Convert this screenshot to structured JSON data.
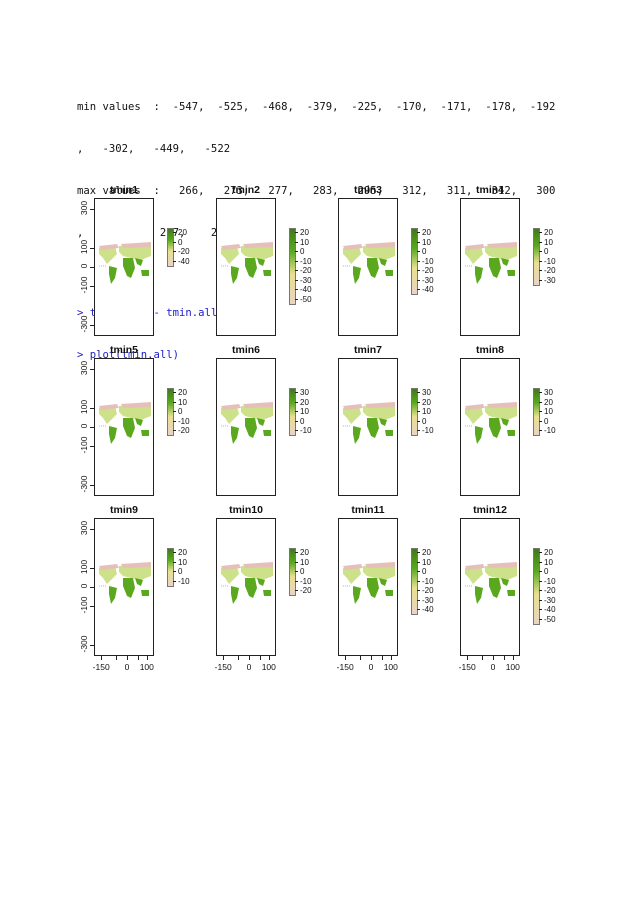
{
  "console": {
    "lines": [
      "min values  :  -547,  -525,  -468,  -379,  -225,  -170,  -171,  -178,  -192",
      ",   -302,   -449,   -522",
      "max values  :   266,   273,   277,   283,   295,   312,   311,   312,   300",
      ",    268,    267,    268"
    ],
    "commands": [
      "> tmin.all <- tmin.all/10",
      "> plot(tmin.all)"
    ]
  },
  "plot": {
    "y_ticks": [
      "300",
      "100",
      "0",
      "-100",
      "-300"
    ],
    "x_ticks": [
      "-150",
      "0",
      "100"
    ],
    "colors": {
      "legend_low": "#e9d3c4",
      "legend_mid": "#e8e08e",
      "legend_high": "#3f7a1b",
      "map_green": "#5aa81e",
      "map_light": "#cde08a",
      "map_pink": "#e5c0b8"
    },
    "panels": [
      {
        "title": "tmin1",
        "legend": [
          "20",
          "0",
          "-20",
          "-40"
        ]
      },
      {
        "title": "tmin2",
        "legend": [
          "20",
          "10",
          "0",
          "-10",
          "-20",
          "-30",
          "-40",
          "-50"
        ]
      },
      {
        "title": "tmin3",
        "legend": [
          "20",
          "10",
          "0",
          "-10",
          "-20",
          "-30",
          "-40"
        ]
      },
      {
        "title": "tmin4",
        "legend": [
          "20",
          "10",
          "0",
          "-10",
          "-20",
          "-30"
        ]
      },
      {
        "title": "tmin5",
        "legend": [
          "20",
          "10",
          "0",
          "-10",
          "-20"
        ]
      },
      {
        "title": "tmin6",
        "legend": [
          "30",
          "20",
          "10",
          "0",
          "-10"
        ]
      },
      {
        "title": "tmin7",
        "legend": [
          "30",
          "20",
          "10",
          "0",
          "-10"
        ]
      },
      {
        "title": "tmin8",
        "legend": [
          "30",
          "20",
          "10",
          "0",
          "-10"
        ]
      },
      {
        "title": "tmin9",
        "legend": [
          "20",
          "10",
          "0",
          "-10"
        ]
      },
      {
        "title": "tmin10",
        "legend": [
          "20",
          "10",
          "0",
          "-10",
          "-20"
        ]
      },
      {
        "title": "tmin11",
        "legend": [
          "20",
          "10",
          "0",
          "-10",
          "-20",
          "-30",
          "-40"
        ]
      },
      {
        "title": "tmin12",
        "legend": [
          "20",
          "10",
          "0",
          "-10",
          "-20",
          "-30",
          "-40",
          "-50"
        ]
      }
    ]
  }
}
